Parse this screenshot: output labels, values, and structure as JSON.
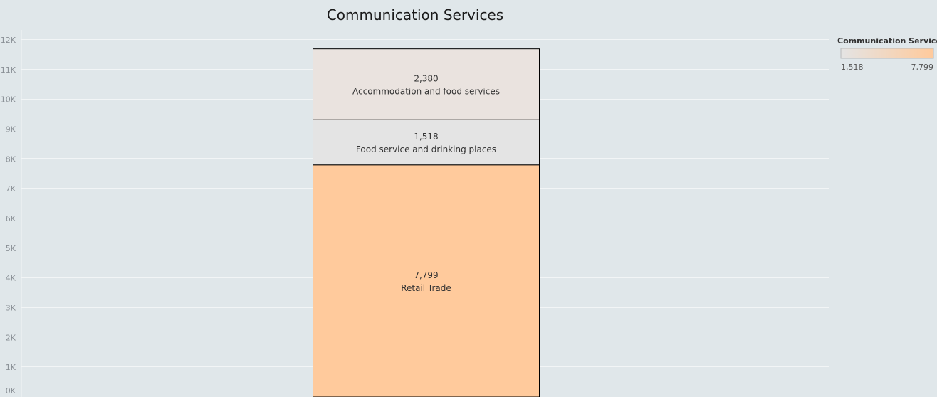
{
  "chart_data": {
    "type": "bar",
    "stacked": true,
    "title": "Communication Services",
    "xlabel": "",
    "ylabel": "",
    "ylim": [
      0,
      12000
    ],
    "yticks": [
      0,
      1000,
      2000,
      3000,
      4000,
      5000,
      6000,
      7000,
      8000,
      9000,
      10000,
      11000,
      12000
    ],
    "ytick_labels": [
      "0K",
      "1K",
      "2K",
      "3K",
      "4K",
      "5K",
      "6K",
      "7K",
      "8K",
      "9K",
      "10K",
      "11K",
      "12K"
    ],
    "grid": true,
    "segments": [
      {
        "label": "Retail Trade",
        "value": 7799,
        "value_label": "7,799",
        "color": "#ffca9c"
      },
      {
        "label": "Food service and drinking places",
        "value": 1518,
        "value_label": "1,518",
        "color": "#e4e4e4"
      },
      {
        "label": "Accommodation and food services",
        "value": 2380,
        "value_label": "2,380",
        "color": "#eae3df"
      }
    ],
    "legend": {
      "title": "Communication Services",
      "placement": "top-right",
      "type": "color-gradient",
      "min_label": "1,518",
      "max_label": "7,799",
      "min_color": "#e4e4e4",
      "max_color": "#ffca9c"
    }
  }
}
